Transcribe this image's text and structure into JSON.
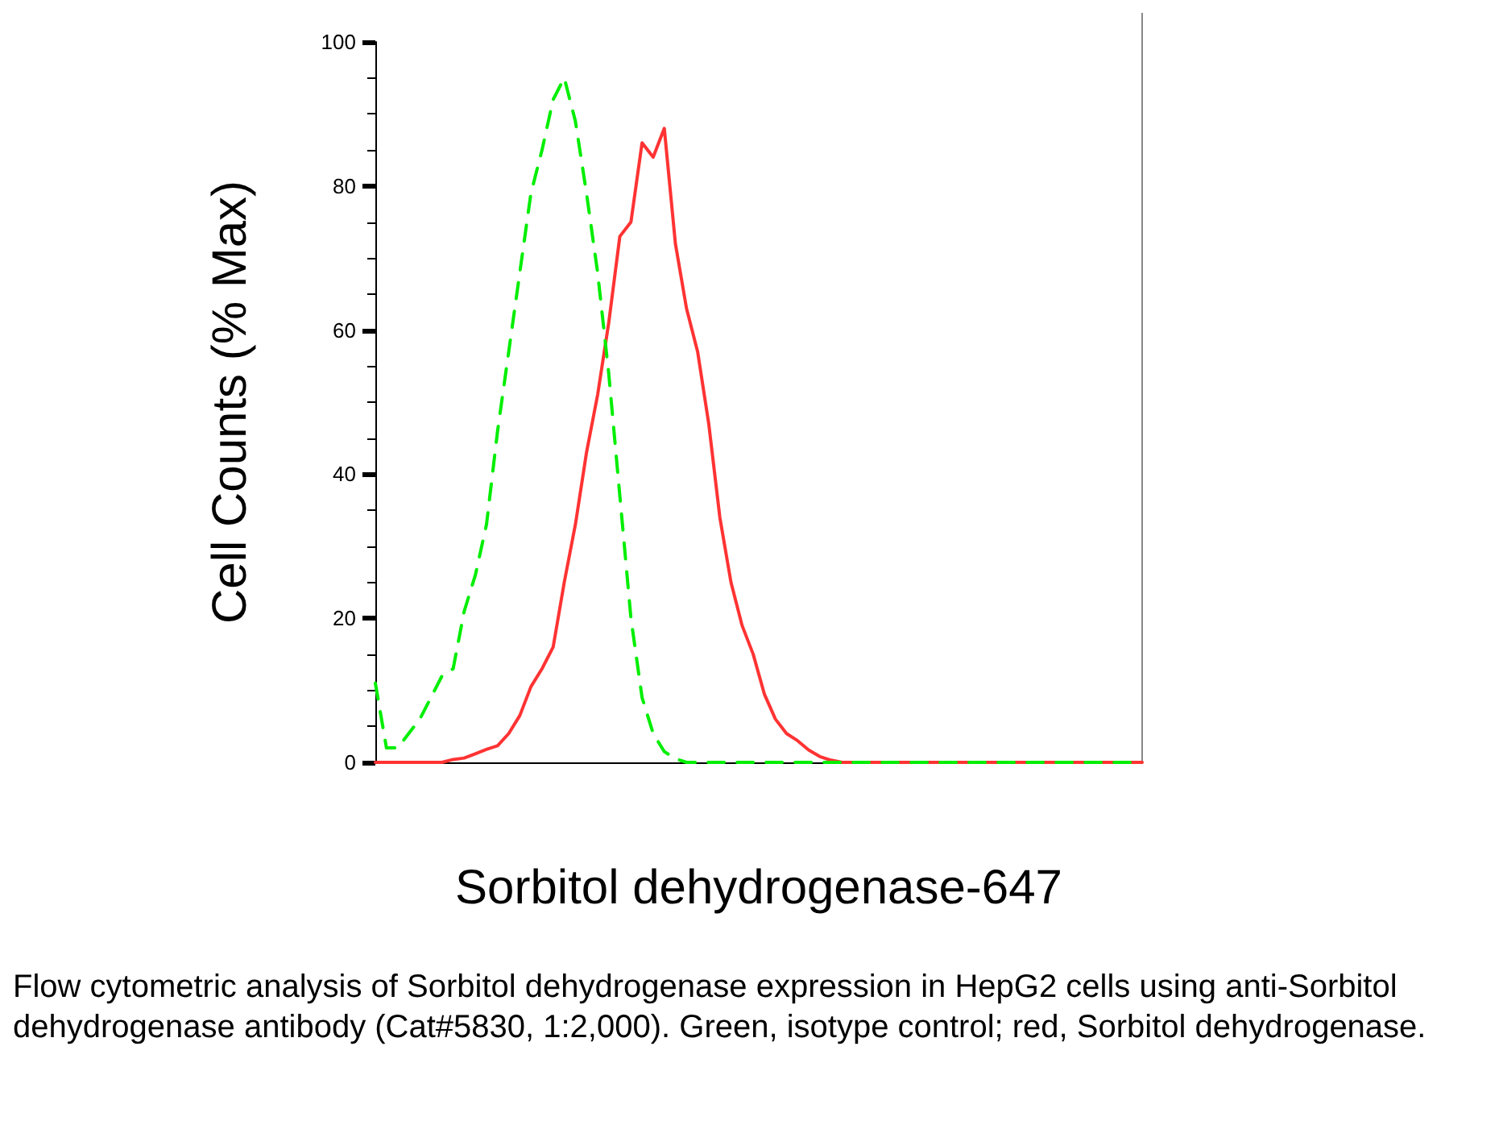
{
  "chart_data": {
    "type": "line",
    "xlabel": "Sorbitol dehydrogenase-647",
    "ylabel": "Cell Counts (% Max)",
    "categories": [
      null,
      null,
      null,
      null,
      null,
      null,
      null,
      null,
      null,
      null,
      null,
      null,
      null,
      null,
      null,
      null,
      null,
      null,
      null,
      null,
      null,
      null,
      null,
      null,
      null,
      null,
      null,
      null,
      null,
      null,
      null,
      null,
      null,
      null,
      null,
      null,
      null,
      null,
      null,
      null,
      null,
      null,
      null,
      null,
      null,
      null,
      null,
      null,
      null,
      null,
      null,
      null,
      null,
      null,
      null,
      null,
      null,
      null,
      null,
      null,
      null,
      null,
      null,
      null,
      null,
      null,
      null,
      null,
      null,
      null
    ],
    "series": [
      {
        "color": "#00ee00",
        "line_style": "dashed",
        "values": [
          11,
          2,
          2,
          4,
          6,
          9,
          12,
          13,
          21,
          26,
          33,
          46,
          57,
          68,
          79,
          85,
          92,
          95,
          89,
          79,
          68,
          54,
          37,
          20,
          9,
          4,
          1.5,
          0.5,
          0,
          0,
          0,
          0,
          0,
          0,
          0,
          0,
          0,
          0,
          0,
          0,
          0,
          0,
          0,
          0,
          0,
          0,
          0,
          0,
          0,
          0,
          0,
          0,
          0,
          0,
          0,
          0,
          0,
          0,
          0,
          0,
          0,
          0,
          0,
          0,
          0,
          0,
          0,
          0,
          0,
          0
        ]
      },
      {
        "color": "#ff3333",
        "line_style": "solid",
        "values": [
          0,
          0,
          0,
          0,
          0,
          0,
          0,
          0.4,
          0.6,
          1.2,
          1.8,
          2.3,
          4,
          6.5,
          10.5,
          13,
          16,
          25,
          33,
          43,
          51,
          61,
          73,
          75,
          86,
          84,
          88,
          72,
          63,
          57,
          47,
          34,
          25,
          19,
          15,
          9.5,
          6,
          4,
          3,
          1.7,
          0.8,
          0.3,
          0,
          0,
          0,
          0,
          0,
          0,
          0,
          0,
          0,
          0,
          0,
          0,
          0,
          0,
          0,
          0,
          0,
          0,
          0,
          0,
          0,
          0,
          0,
          0,
          0,
          0,
          0,
          0
        ]
      }
    ],
    "ylim": [
      0,
      100
    ],
    "yticks": [
      0,
      20,
      40,
      60,
      80,
      100
    ],
    "grid": false,
    "marker": "none",
    "annotations": [
      "Flow cytometric analysis of Sorbitol dehydrogenase expression in HepG2 cells using anti-Sorbitol dehydrogenase antibody (Cat#5830, 1:2,000). Green, isotype control; red, Sorbitol dehydrogenase."
    ]
  }
}
